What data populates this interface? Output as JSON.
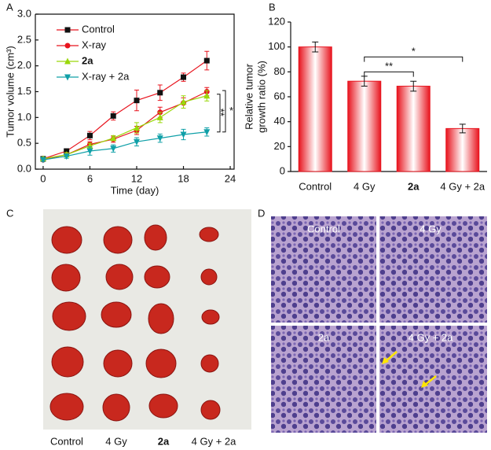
{
  "chart_data": [
    {
      "type": "line",
      "panel": "A",
      "xlabel": "Time (day)",
      "ylabel": "Tumor volume (cm³)",
      "x": [
        0,
        3,
        6,
        9,
        12,
        15,
        18,
        21
      ],
      "series": [
        {
          "name": "Control",
          "color": "#e8141e",
          "marker": "square",
          "values": [
            0.2,
            0.35,
            0.65,
            1.03,
            1.33,
            1.48,
            1.78,
            2.1
          ],
          "errors": [
            0.03,
            0.04,
            0.08,
            0.08,
            0.2,
            0.15,
            0.08,
            0.18
          ]
        },
        {
          "name": "X-ray",
          "color": "#e8141e",
          "marker": "circle",
          "values": [
            0.18,
            0.28,
            0.48,
            0.58,
            0.75,
            1.1,
            1.28,
            1.5
          ],
          "errors": [
            0.03,
            0.04,
            0.05,
            0.06,
            0.08,
            0.1,
            0.1,
            0.08
          ]
        },
        {
          "name": "2a",
          "color": "#9ad80a",
          "marker": "triangle-up",
          "values": [
            0.2,
            0.28,
            0.45,
            0.6,
            0.8,
            1.0,
            1.3,
            1.42
          ],
          "errors": [
            0.03,
            0.04,
            0.05,
            0.05,
            0.1,
            0.1,
            0.12,
            0.1
          ]
        },
        {
          "name": "X-ray + 2a",
          "color": "#10a0a8",
          "marker": "triangle-down",
          "values": [
            0.18,
            0.25,
            0.35,
            0.4,
            0.53,
            0.6,
            0.67,
            0.72
          ],
          "errors": [
            0.03,
            0.04,
            0.08,
            0.07,
            0.08,
            0.08,
            0.1,
            0.08
          ]
        }
      ],
      "xlim": [
        -1,
        24.5
      ],
      "xticks": [
        0,
        6,
        12,
        18,
        24
      ],
      "ylim": [
        0,
        3
      ],
      "yticks": [
        {
          "value": 0,
          "label": "0.0"
        },
        0.5,
        {
          "value": 1,
          "label": "1.0"
        },
        1.5,
        {
          "value": 2,
          "label": "2.0"
        },
        2.5,
        {
          "value": 3,
          "label": "3.0"
        }
      ],
      "annotations": [
        "**",
        "*"
      ]
    },
    {
      "type": "bar",
      "panel": "B",
      "ylabel": [
        "Relative tumor",
        "growth ratio (%)"
      ],
      "categories": [
        "Control",
        "4 Gy",
        "2a",
        "4 Gy + 2a"
      ],
      "values": [
        100,
        72.5,
        68.5,
        34.5
      ],
      "errors": [
        4,
        4,
        4,
        3.5
      ],
      "color": "#e8141e",
      "ylim": [
        0,
        120
      ],
      "yticks": [
        0,
        20,
        40,
        60,
        80,
        100,
        120
      ],
      "annotations": [
        "**",
        "*"
      ]
    }
  ],
  "photo": {
    "panel": "C",
    "labels": [
      "Control",
      "4 Gy",
      "2a",
      "4 Gy + 2a"
    ]
  },
  "histology": {
    "panel": "D",
    "labels": [
      "Control",
      "4 Gy",
      "2a",
      "4 Gy + 2a"
    ]
  }
}
